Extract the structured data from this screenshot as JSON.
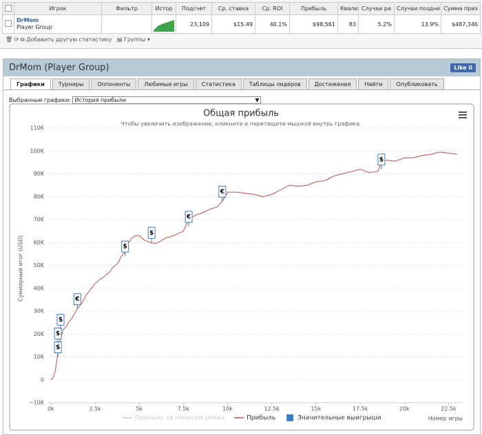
{
  "table": {
    "headers": [
      "Игрок",
      "Фильтр",
      "Истор",
      "Подсчет",
      "Ср. ставка",
      "Ср. ROI",
      "Прибыль",
      "Квали",
      "Случаи ра",
      "Случаи поздне",
      "Сумма приз"
    ],
    "row": {
      "player": "DrMom",
      "group": "Player Group",
      "cells": [
        "23,109",
        "$15.49",
        "40.1%",
        "$98,561",
        "83",
        "5.2%",
        "13.9%",
        "$487,346"
      ]
    }
  },
  "toolbar": {
    "add_stat": "Добавить другую статистику",
    "groups": "Группы"
  },
  "panel": {
    "title": "DrMom (Player Group)",
    "like": "Like 0",
    "tabs": [
      "Графики",
      "Турниры",
      "Оппоненты",
      "Любимые игры",
      "Статистика",
      "Таблицы лидеров",
      "Достижения",
      "Найти",
      "Опубликовать"
    ],
    "select_label": "Выбранные графики:",
    "select_value": "История прибыли"
  },
  "chart_data": {
    "type": "line",
    "title": "Общая прибыль",
    "subtitle": "Чтобы увеличить изображение, кликните и перетащите мышкой внутрь графика.",
    "y_label": "Суммарный итог (USD)",
    "x_label": "Номер игры",
    "xlim": [
      -150,
      23300
    ],
    "ylim": [
      -10000,
      110000
    ],
    "xticks": [
      {
        "value": 0,
        "label": "0k"
      },
      {
        "value": 2500,
        "label": "2.5k"
      },
      {
        "value": 5000,
        "label": "5k"
      },
      {
        "value": 7500,
        "label": "7.5k"
      },
      {
        "value": 10000,
        "label": "10k"
      },
      {
        "value": 12500,
        "label": "12.5k"
      },
      {
        "value": 15000,
        "label": "15k"
      },
      {
        "value": 17500,
        "label": "17.5k"
      },
      {
        "value": 20000,
        "label": "20k"
      },
      {
        "value": 22500,
        "label": "22.5k"
      }
    ],
    "yticks": [
      {
        "value": -10000,
        "label": "−10K"
      },
      0,
      {
        "value": 10000,
        "label": "10K"
      },
      {
        "value": 20000,
        "label": "20K"
      },
      {
        "value": 30000,
        "label": "30K"
      },
      {
        "value": 40000,
        "label": "40K"
      },
      {
        "value": 50000,
        "label": "50K"
      },
      {
        "value": 60000,
        "label": "60K"
      },
      {
        "value": 70000,
        "label": "70K"
      },
      {
        "value": 80000,
        "label": "80K"
      },
      {
        "value": 90000,
        "label": "90K"
      },
      {
        "value": 100000,
        "label": "100K"
      },
      {
        "value": 110000,
        "label": "110K"
      }
    ],
    "grid": true,
    "hidden_series": {
      "name": "Прибыль за минусом рейка",
      "color": "#cccccc"
    },
    "series": [
      {
        "name": "Прибыль",
        "color": "#c0504d",
        "x": [
          0,
          150,
          250,
          350,
          450,
          550,
          700,
          850,
          1000,
          1200,
          1500,
          1800,
          2000,
          2300,
          2500,
          2800,
          3000,
          3300,
          3500,
          3800,
          4000,
          4200,
          4400,
          4600,
          4800,
          5000,
          5300,
          5600,
          5900,
          6200,
          6500,
          6800,
          7100,
          7500,
          7800,
          8200,
          8600,
          9000,
          9400,
          9700,
          10000,
          10500,
          11000,
          11500,
          12000,
          12500,
          13000,
          13500,
          14000,
          14500,
          15000,
          15500,
          16000,
          16500,
          17000,
          17500,
          18000,
          18500,
          18700,
          19000,
          19500,
          20000,
          20500,
          21000,
          21500,
          22000,
          22500,
          23000
        ],
        "values": [
          0,
          1000,
          4000,
          9000,
          15000,
          18000,
          22000,
          23000,
          25000,
          27000,
          31000,
          34000,
          37000,
          40000,
          42000,
          44000,
          45000,
          47000,
          49000,
          51000,
          54000,
          56000,
          60000,
          62000,
          63000,
          63000,
          61000,
          60000,
          59500,
          60500,
          62000,
          62500,
          63500,
          65000,
          70000,
          72000,
          73000,
          74500,
          75500,
          78000,
          82000,
          82000,
          81500,
          81000,
          80000,
          81000,
          83000,
          85000,
          84500,
          85000,
          86500,
          87000,
          89000,
          90000,
          91000,
          92000,
          90500,
          91000,
          95000,
          96000,
          95500,
          97000,
          97000,
          98000,
          98500,
          99500,
          99000,
          98500
        ]
      },
      {
        "name": "Значительные выигрыши",
        "color": "#3d7cc9",
        "x": [
          400,
          400,
          550,
          1500,
          4200,
          5700,
          7800,
          9700,
          18700
        ],
        "values": [
          10000,
          16000,
          22000,
          31000,
          54000,
          60000,
          67000,
          78000,
          92000
        ],
        "labels": [
          "$",
          "$",
          "$",
          "€",
          "$",
          "$",
          "€",
          "€",
          "$"
        ]
      }
    ]
  }
}
